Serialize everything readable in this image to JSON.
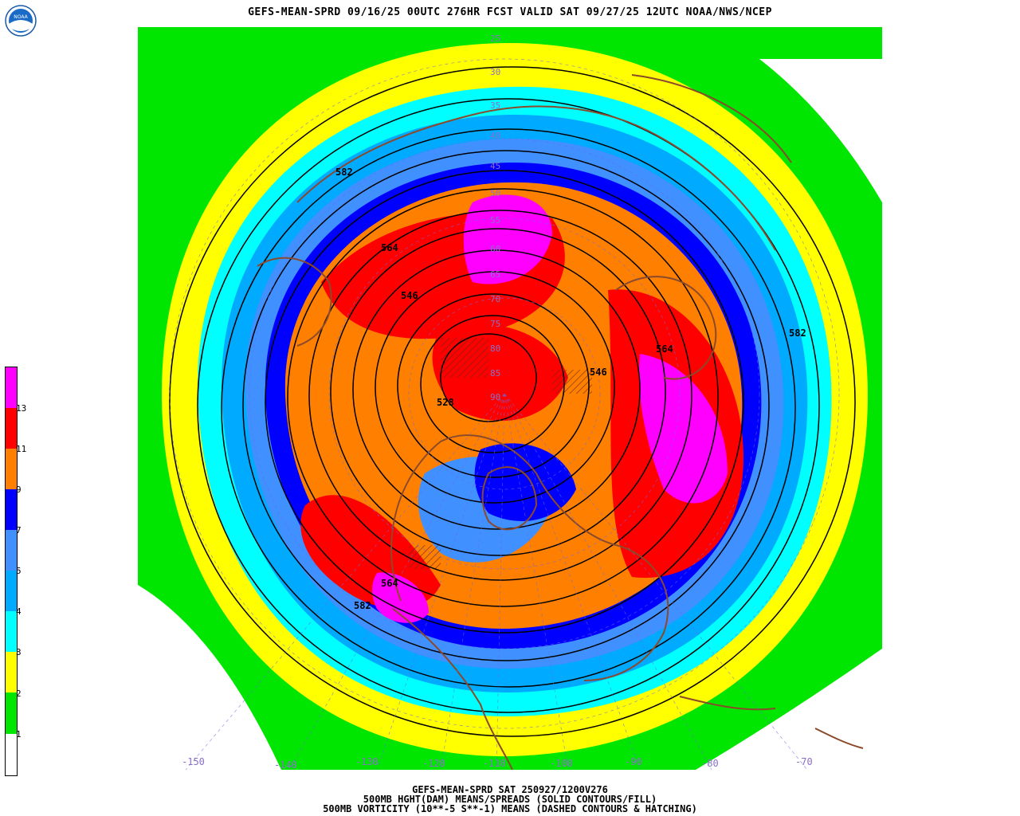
{
  "header": {
    "title": "GEFS-MEAN-SPRD 09/16/25 00UTC 276HR FCST VALID SAT 09/27/25 12UTC NOAA/NWS/NCEP",
    "logo_text": "NOAA"
  },
  "legend": {
    "labels": [
      "1",
      "2",
      "3",
      "4",
      "5",
      "7",
      "9",
      "11",
      "13"
    ],
    "colors": [
      "#ffffff",
      "#00e600",
      "#ffff00",
      "#00ffff",
      "#00aaff",
      "#4090ff",
      "#0000ff",
      "#ff8000",
      "#ff0000",
      "#ff00ff"
    ]
  },
  "map": {
    "land_color": "#8b4a2b",
    "contour_labels": [
      "582",
      "564",
      "546",
      "528",
      "546",
      "564",
      "582",
      "564",
      "582"
    ],
    "latitude_labels": [
      "25",
      "30",
      "35",
      "40",
      "45",
      "50",
      "55",
      "60",
      "65",
      "70",
      "75",
      "80",
      "85",
      "90"
    ],
    "longitude_labels": [
      "-150",
      "-140",
      "-130",
      "-120",
      "-110",
      "-100",
      "-90",
      "-80",
      "-70"
    ]
  },
  "footer": {
    "line1": "GEFS-MEAN-SPRD SAT 250927/1200V276",
    "line2": "500MB HGHT(DAM) MEANS/SPREADS (SOLID CONTOURS/FILL)",
    "line3": "500MB VORTICITY (10**-5 S**-1) MEANS (DASHED CONTOURS & HATCHING)"
  }
}
